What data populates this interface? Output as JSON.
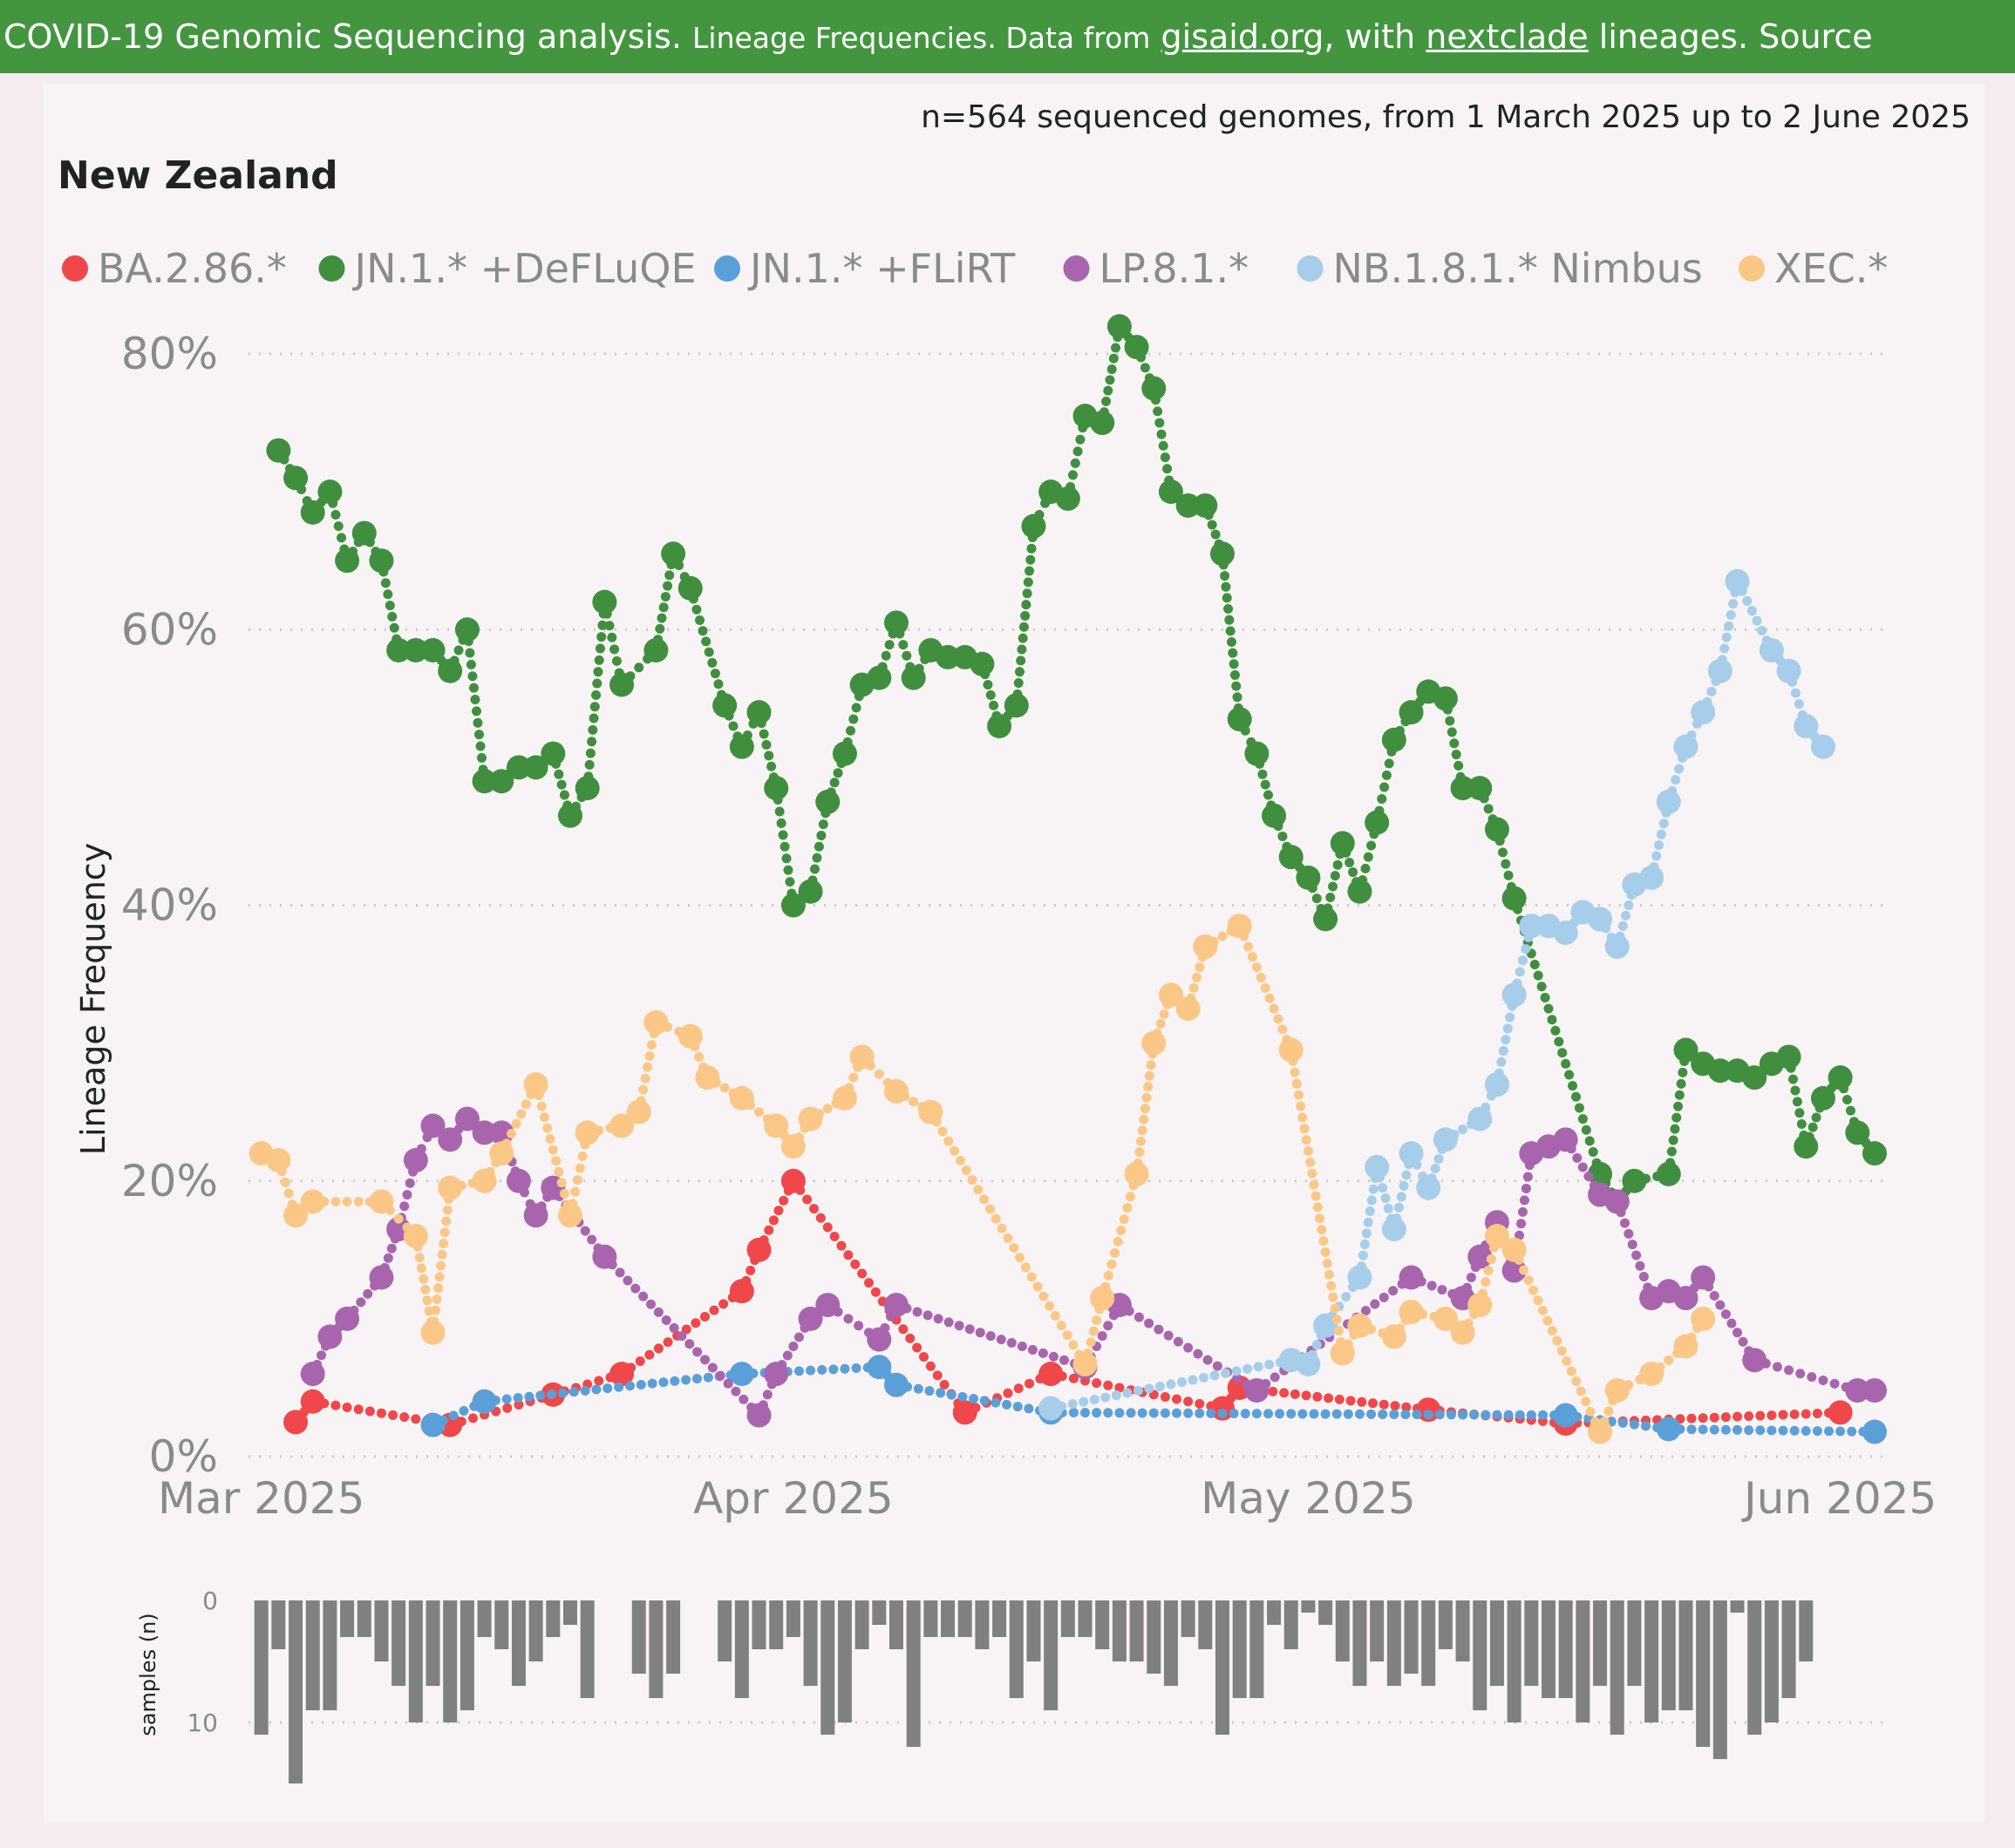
{
  "banner": {
    "prefix": "COVID-19 Genomic Sequencing analysis.",
    "part1": "Lineage Frequencies. Data from",
    "link1": "gisaid.org",
    "part2": ", with",
    "link2": "nextclade",
    "part3": "lineages. Source"
  },
  "colors": {
    "banner_bg": "#43963f",
    "BA.2.86": "#f0474a",
    "DeFLuQE": "#3f8f3f",
    "FLiRT": "#5b9fd8",
    "LP.8.1": "#a865ad",
    "Nimbus": "#a6cdea",
    "XEC": "#fbc787",
    "samples_bar": "#808080"
  },
  "chart_data": {
    "type": "line",
    "subtitle": "n=564 sequenced genomes, from 1 March 2025 up to 2 June 2025",
    "title": "New Zealand",
    "ylabel": "Lineage Frequency",
    "yticks": [
      "0%",
      "20%",
      "40%",
      "60%",
      "80%"
    ],
    "ylim": [
      0,
      85
    ],
    "xlim": [
      "2025-02-28",
      "2025-06-03"
    ],
    "xticks": [
      {
        "date": "2025-03-01",
        "label": "Mar 2025"
      },
      {
        "date": "2025-04-01",
        "label": "Apr 2025"
      },
      {
        "date": "2025-05-01",
        "label": "May 2025"
      },
      {
        "date": "2025-06-01",
        "label": "Jun 2025"
      }
    ],
    "series": [
      {
        "name": "BA.2.86.*",
        "color_key": "BA.2.86",
        "points": [
          [
            "2025-03-03",
            2.5
          ],
          [
            "2025-03-04",
            4
          ],
          [
            "2025-03-12",
            2.3
          ],
          [
            "2025-03-18",
            4.5
          ],
          [
            "2025-03-22",
            6
          ],
          [
            "2025-03-29",
            12
          ],
          [
            "2025-03-30",
            15
          ],
          [
            "2025-04-01",
            20
          ],
          [
            "2025-04-11",
            3.2
          ],
          [
            "2025-04-16",
            6
          ],
          [
            "2025-04-26",
            3.5
          ],
          [
            "2025-04-27",
            5
          ],
          [
            "2025-05-08",
            3.4
          ],
          [
            "2025-05-16",
            2.4
          ],
          [
            "2025-06-01",
            3.2
          ]
        ]
      },
      {
        "name": "JN.1.* +DeFLuQE",
        "color_key": "DeFLuQE",
        "points": [
          [
            "2025-03-02",
            73
          ],
          [
            "2025-03-03",
            71
          ],
          [
            "2025-03-04",
            68.5
          ],
          [
            "2025-03-05",
            70
          ],
          [
            "2025-03-06",
            65
          ],
          [
            "2025-03-07",
            67
          ],
          [
            "2025-03-08",
            65
          ],
          [
            "2025-03-09",
            58.5
          ],
          [
            "2025-03-10",
            58.5
          ],
          [
            "2025-03-11",
            58.5
          ],
          [
            "2025-03-12",
            57
          ],
          [
            "2025-03-13",
            60
          ],
          [
            "2025-03-14",
            49
          ],
          [
            "2025-03-15",
            49
          ],
          [
            "2025-03-16",
            50
          ],
          [
            "2025-03-17",
            50
          ],
          [
            "2025-03-18",
            51
          ],
          [
            "2025-03-19",
            46.5
          ],
          [
            "2025-03-20",
            48.5
          ],
          [
            "2025-03-21",
            62
          ],
          [
            "2025-03-22",
            56
          ],
          [
            "2025-03-24",
            58.5
          ],
          [
            "2025-03-25",
            65.5
          ],
          [
            "2025-03-26",
            63
          ],
          [
            "2025-03-28",
            54.5
          ],
          [
            "2025-03-29",
            51.5
          ],
          [
            "2025-03-30",
            54
          ],
          [
            "2025-03-31",
            48.5
          ],
          [
            "2025-04-01",
            40
          ],
          [
            "2025-04-02",
            41
          ],
          [
            "2025-04-03",
            47.5
          ],
          [
            "2025-04-04",
            51
          ],
          [
            "2025-04-05",
            56
          ],
          [
            "2025-04-06",
            56.5
          ],
          [
            "2025-04-07",
            60.5
          ],
          [
            "2025-04-08",
            56.5
          ],
          [
            "2025-04-09",
            58.5
          ],
          [
            "2025-04-10",
            58
          ],
          [
            "2025-04-11",
            58
          ],
          [
            "2025-04-12",
            57.5
          ],
          [
            "2025-04-13",
            53
          ],
          [
            "2025-04-14",
            54.5
          ],
          [
            "2025-04-15",
            67.5
          ],
          [
            "2025-04-16",
            70
          ],
          [
            "2025-04-17",
            69.5
          ],
          [
            "2025-04-18",
            75.5
          ],
          [
            "2025-04-19",
            75
          ],
          [
            "2025-04-20",
            82
          ],
          [
            "2025-04-21",
            80.5
          ],
          [
            "2025-04-22",
            77.5
          ],
          [
            "2025-04-23",
            70
          ],
          [
            "2025-04-24",
            69
          ],
          [
            "2025-04-25",
            69
          ],
          [
            "2025-04-26",
            65.5
          ],
          [
            "2025-04-27",
            53.5
          ],
          [
            "2025-04-28",
            51
          ],
          [
            "2025-04-29",
            46.5
          ],
          [
            "2025-04-30",
            43.5
          ],
          [
            "2025-05-01",
            42
          ],
          [
            "2025-05-02",
            39
          ],
          [
            "2025-05-03",
            44.5
          ],
          [
            "2025-05-04",
            41
          ],
          [
            "2025-05-05",
            46
          ],
          [
            "2025-05-06",
            52
          ],
          [
            "2025-05-07",
            54
          ],
          [
            "2025-05-08",
            55.5
          ],
          [
            "2025-05-09",
            55
          ],
          [
            "2025-05-10",
            48.5
          ],
          [
            "2025-05-11",
            48.5
          ],
          [
            "2025-05-12",
            45.5
          ],
          [
            "2025-05-13",
            40.5
          ],
          [
            "2025-05-18",
            20.5
          ],
          [
            "2025-05-19",
            18.5
          ],
          [
            "2025-05-20",
            20
          ],
          [
            "2025-05-22",
            20.5
          ],
          [
            "2025-05-23",
            29.5
          ],
          [
            "2025-05-24",
            28.5
          ],
          [
            "2025-05-25",
            28
          ],
          [
            "2025-05-26",
            28
          ],
          [
            "2025-05-27",
            27.5
          ],
          [
            "2025-05-28",
            28.5
          ],
          [
            "2025-05-29",
            29
          ],
          [
            "2025-05-30",
            22.5
          ],
          [
            "2025-05-31",
            26
          ],
          [
            "2025-06-01",
            27.5
          ],
          [
            "2025-06-02",
            23.5
          ],
          [
            "2025-06-03",
            22
          ]
        ]
      },
      {
        "name": "JN.1.* +FLiRT",
        "color_key": "FLiRT",
        "points": [
          [
            "2025-03-11",
            2.3
          ],
          [
            "2025-03-14",
            4
          ],
          [
            "2025-03-29",
            6
          ],
          [
            "2025-04-06",
            6.5
          ],
          [
            "2025-04-07",
            5.2
          ],
          [
            "2025-04-16",
            3.2
          ],
          [
            "2025-05-16",
            3
          ],
          [
            "2025-05-22",
            2
          ],
          [
            "2025-06-03",
            1.8
          ]
        ]
      },
      {
        "name": "LP.8.1.*",
        "color_key": "LP.8.1",
        "points": [
          [
            "2025-03-04",
            6
          ],
          [
            "2025-03-05",
            8.7
          ],
          [
            "2025-03-06",
            10
          ],
          [
            "2025-03-08",
            13
          ],
          [
            "2025-03-09",
            16.5
          ],
          [
            "2025-03-10",
            21.5
          ],
          [
            "2025-03-11",
            24
          ],
          [
            "2025-03-12",
            23
          ],
          [
            "2025-03-13",
            24.5
          ],
          [
            "2025-03-14",
            23.5
          ],
          [
            "2025-03-15",
            23.5
          ],
          [
            "2025-03-16",
            20
          ],
          [
            "2025-03-17",
            17.5
          ],
          [
            "2025-03-18",
            19.5
          ],
          [
            "2025-03-21",
            14.5
          ],
          [
            "2025-03-30",
            3
          ],
          [
            "2025-03-31",
            6
          ],
          [
            "2025-04-02",
            10
          ],
          [
            "2025-04-03",
            11
          ],
          [
            "2025-04-06",
            8.5
          ],
          [
            "2025-04-07",
            11
          ],
          [
            "2025-04-18",
            6.5
          ],
          [
            "2025-04-20",
            11
          ],
          [
            "2025-04-28",
            4.8
          ],
          [
            "2025-05-07",
            13
          ],
          [
            "2025-05-10",
            11.5
          ],
          [
            "2025-05-11",
            14.5
          ],
          [
            "2025-05-12",
            17
          ],
          [
            "2025-05-13",
            13.5
          ],
          [
            "2025-05-14",
            22
          ],
          [
            "2025-05-15",
            22.5
          ],
          [
            "2025-05-16",
            23
          ],
          [
            "2025-05-18",
            19
          ],
          [
            "2025-05-19",
            18.5
          ],
          [
            "2025-05-21",
            11.5
          ],
          [
            "2025-05-22",
            12
          ],
          [
            "2025-05-23",
            11.5
          ],
          [
            "2025-05-24",
            13
          ],
          [
            "2025-05-27",
            7
          ],
          [
            "2025-06-02",
            4.8
          ],
          [
            "2025-06-03",
            4.8
          ]
        ]
      },
      {
        "name": "NB.1.8.1.* Nimbus",
        "color_key": "Nimbus",
        "points": [
          [
            "2025-04-16",
            3.5
          ],
          [
            "2025-04-30",
            7
          ],
          [
            "2025-05-01",
            6.7
          ],
          [
            "2025-05-02",
            9.5
          ],
          [
            "2025-05-04",
            13
          ],
          [
            "2025-05-05",
            21
          ],
          [
            "2025-05-06",
            16.5
          ],
          [
            "2025-05-07",
            22
          ],
          [
            "2025-05-08",
            19.5
          ],
          [
            "2025-05-09",
            23
          ],
          [
            "2025-05-11",
            24.5
          ],
          [
            "2025-05-12",
            27
          ],
          [
            "2025-05-13",
            33.5
          ],
          [
            "2025-05-14",
            38.5
          ],
          [
            "2025-05-15",
            38.5
          ],
          [
            "2025-05-16",
            38
          ],
          [
            "2025-05-17",
            39.5
          ],
          [
            "2025-05-18",
            39
          ],
          [
            "2025-05-19",
            37
          ],
          [
            "2025-05-20",
            41.5
          ],
          [
            "2025-05-21",
            42
          ],
          [
            "2025-05-22",
            47.5
          ],
          [
            "2025-05-23",
            51.5
          ],
          [
            "2025-05-24",
            54
          ],
          [
            "2025-05-25",
            57
          ],
          [
            "2025-05-26",
            63.5
          ],
          [
            "2025-05-28",
            58.5
          ],
          [
            "2025-05-29",
            57
          ],
          [
            "2025-05-30",
            53
          ],
          [
            "2025-05-31",
            51.5
          ]
        ]
      },
      {
        "name": "XEC.*",
        "color_key": "XEC",
        "points": [
          [
            "2025-03-01",
            22
          ],
          [
            "2025-03-02",
            21.5
          ],
          [
            "2025-03-03",
            17.5
          ],
          [
            "2025-03-04",
            18.5
          ],
          [
            "2025-03-08",
            18.5
          ],
          [
            "2025-03-10",
            16
          ],
          [
            "2025-03-11",
            9
          ],
          [
            "2025-03-12",
            19.5
          ],
          [
            "2025-03-14",
            20
          ],
          [
            "2025-03-15",
            22
          ],
          [
            "2025-03-17",
            27
          ],
          [
            "2025-03-19",
            17.5
          ],
          [
            "2025-03-20",
            23.5
          ],
          [
            "2025-03-22",
            24
          ],
          [
            "2025-03-23",
            25
          ],
          [
            "2025-03-24",
            31.5
          ],
          [
            "2025-03-26",
            30.5
          ],
          [
            "2025-03-27",
            27.5
          ],
          [
            "2025-03-29",
            26
          ],
          [
            "2025-03-31",
            24
          ],
          [
            "2025-04-01",
            22.5
          ],
          [
            "2025-04-02",
            24.5
          ],
          [
            "2025-04-04",
            26
          ],
          [
            "2025-04-05",
            29
          ],
          [
            "2025-04-07",
            26.5
          ],
          [
            "2025-04-09",
            25
          ],
          [
            "2025-04-18",
            6.7
          ],
          [
            "2025-04-19",
            11.5
          ],
          [
            "2025-04-21",
            20.5
          ],
          [
            "2025-04-22",
            30
          ],
          [
            "2025-04-23",
            33.5
          ],
          [
            "2025-04-24",
            32.5
          ],
          [
            "2025-04-25",
            37
          ],
          [
            "2025-04-27",
            38.5
          ],
          [
            "2025-04-30",
            29.5
          ],
          [
            "2025-05-03",
            7.5
          ],
          [
            "2025-05-04",
            9.5
          ],
          [
            "2025-05-06",
            8.7
          ],
          [
            "2025-05-07",
            10.5
          ],
          [
            "2025-05-09",
            10
          ],
          [
            "2025-05-10",
            9
          ],
          [
            "2025-05-11",
            11
          ],
          [
            "2025-05-12",
            16
          ],
          [
            "2025-05-13",
            15
          ],
          [
            "2025-05-18",
            1.8
          ],
          [
            "2025-05-19",
            4.8
          ],
          [
            "2025-05-21",
            6
          ],
          [
            "2025-05-23",
            8
          ],
          [
            "2025-05-24",
            10
          ]
        ]
      }
    ],
    "samples": {
      "ylabel": "samples (n)",
      "yticks": [
        "0",
        "10"
      ],
      "ylim": [
        0,
        15
      ],
      "start": "2025-03-01",
      "counts": [
        11,
        4,
        15,
        9,
        9,
        3,
        3,
        5,
        7,
        10,
        7,
        10,
        9,
        3,
        4,
        7,
        5,
        3,
        2,
        8,
        0,
        0,
        6,
        8,
        6,
        0,
        0,
        5,
        8,
        4,
        4,
        3,
        7,
        11,
        10,
        4,
        2,
        4,
        12,
        3,
        3,
        3,
        4,
        3,
        8,
        5,
        9,
        3,
        3,
        4,
        5,
        5,
        6,
        7,
        3,
        4,
        11,
        8,
        8,
        2,
        4,
        1,
        2,
        5,
        7,
        5,
        7,
        6,
        7,
        4,
        5,
        9,
        7,
        10,
        7,
        8,
        8,
        10,
        7,
        11,
        7,
        10,
        9,
        9,
        12,
        13,
        1,
        11,
        10,
        8,
        5
      ]
    }
  }
}
